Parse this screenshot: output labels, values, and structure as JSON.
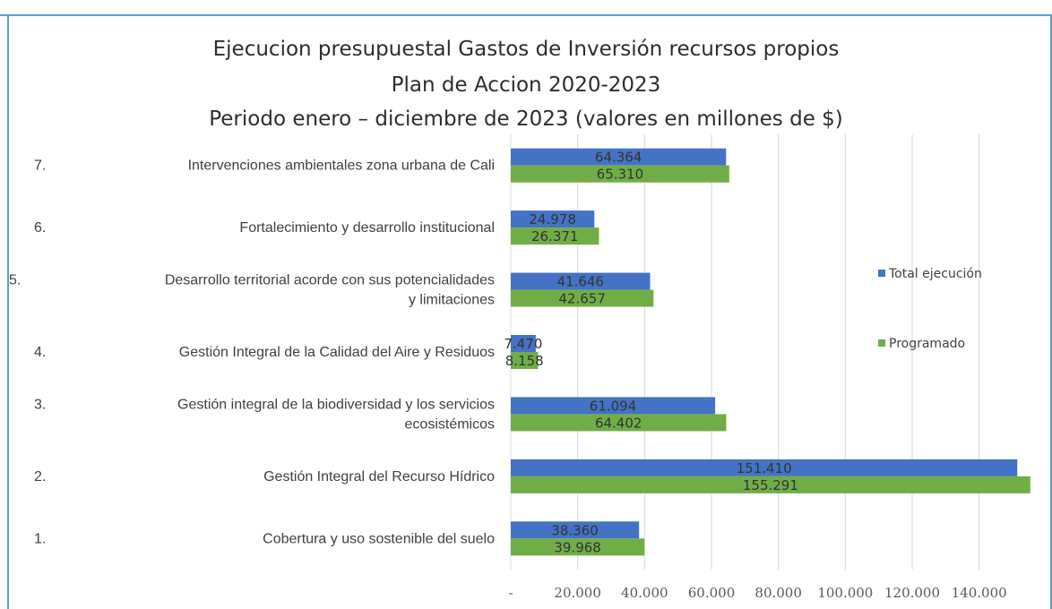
{
  "chart_data": {
    "type": "bar",
    "orientation": "horizontal",
    "title_lines": [
      "Ejecucion presupuestal Gastos de Inversión recursos propios",
      "Plan de Accion 2020-2023",
      "Periodo enero – diciembre de 2023 (valores en millones de $)"
    ],
    "categories": [
      "7.   Intervenciones ambientales zona urbana de Cali",
      "6.   Fortalecimiento y desarrollo institucional",
      "5.   Desarrollo territorial acorde con sus potencialidades y limitaciones",
      "4.   Gestión Integral de la Calidad del Aire y Residuos",
      "3.   Gestión integral de la biodiversidad y los servicios ecosistémicos",
      "2.   Gestión Integral del Recurso Hídrico",
      "1.   Cobertura y uso sostenible del suelo"
    ],
    "category_lines": [
      [
        "7.",
        "Intervenciones ambientales zona urbana de Cali"
      ],
      [
        "6.",
        "Fortalecimiento y desarrollo institucional"
      ],
      [
        "5.",
        "Desarrollo territorial acorde con sus potencialidades",
        "y limitaciones"
      ],
      [
        "4.",
        "Gestión Integral de la Calidad del Aire y Residuos"
      ],
      [
        "3.",
        "Gestión integral de la biodiversidad y los servicios",
        "ecosistémicos"
      ],
      [
        "2.",
        "Gestión Integral del Recurso Hídrico"
      ],
      [
        "1.",
        "Cobertura y uso sostenible del suelo"
      ]
    ],
    "series": [
      {
        "name": "Total ejecución",
        "color": "#4472c4",
        "values": [
          64364,
          24978,
          41646,
          7470,
          61094,
          151410,
          38360
        ],
        "labels": [
          "64.364",
          "24.978",
          "41.646",
          "7.470",
          "61.094",
          "151.410",
          "38.360"
        ]
      },
      {
        "name": "Programado",
        "color": "#70ad47",
        "values": [
          65310,
          26371,
          42657,
          8158,
          64402,
          155291,
          39968
        ],
        "labels": [
          "65.310",
          "26.371",
          "42.657",
          "8.158",
          "64.402",
          "155.291",
          "39.968"
        ]
      }
    ],
    "xlim": [
      0,
      150000
    ],
    "x_ticks": [
      0,
      20000,
      40000,
      60000,
      80000,
      100000,
      120000,
      140000
    ],
    "x_tick_labels": [
      "-",
      "20.000",
      "40.000",
      "60.000",
      "80.000",
      "100.000",
      "120.000",
      "140.000"
    ],
    "grid": true,
    "legend_position": "right",
    "gridline_color": "#d9d9d9",
    "frame_color": "#5b9bd5"
  }
}
